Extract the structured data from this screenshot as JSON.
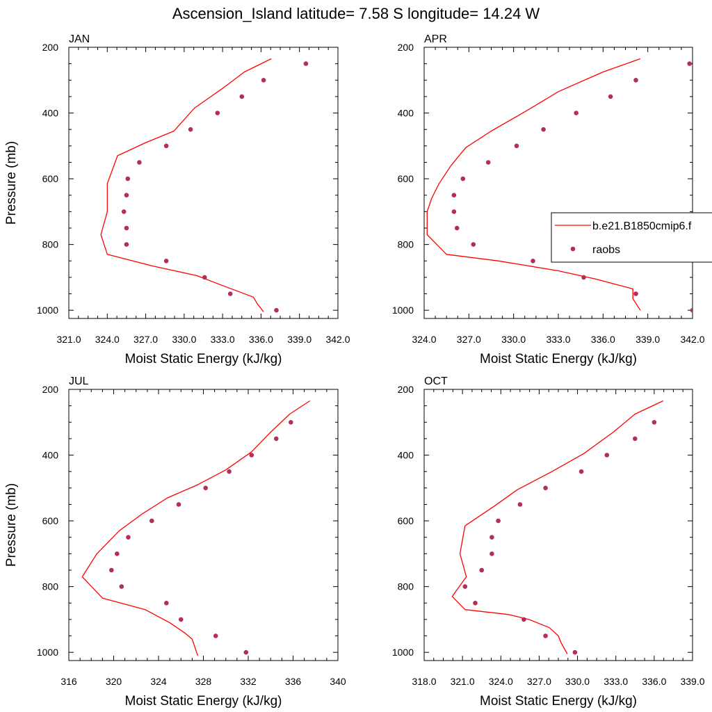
{
  "figure": {
    "title": "Ascension_Island  latitude= 7.58 S longitude= 14.24 W",
    "legend": {
      "model_label": "b.e21.B1850cmip6.f",
      "obs_label": "raobs"
    },
    "colors": {
      "model_line": "#ff0000",
      "obs_marker": "#b0305a",
      "frame": "#000000"
    }
  },
  "chart_data": [
    {
      "type": "line",
      "title": "JAN",
      "xlabel": "Moist Static Energy (kJ/kg)",
      "ylabel": "Pressure (mb)",
      "xlim": [
        321,
        342
      ],
      "xticks": [
        "321.0",
        "324.0",
        "327.0",
        "330.0",
        "333.0",
        "336.0",
        "339.0",
        "342.0"
      ],
      "ylim": [
        1025,
        200
      ],
      "yticks": [
        "200",
        "400",
        "600",
        "800",
        "1000"
      ],
      "y_direction": "inverted",
      "series": [
        {
          "name": "b.e21.B1850cmip6.f",
          "kind": "line",
          "points": [
            [
              336.8,
              235
            ],
            [
              334.7,
              275
            ],
            [
              333.0,
              325
            ],
            [
              330.8,
              385
            ],
            [
              329.2,
              455
            ],
            [
              327.0,
              490
            ],
            [
              324.8,
              530
            ],
            [
              324.0,
              615
            ],
            [
              324.0,
              700
            ],
            [
              323.5,
              770
            ],
            [
              324.0,
              830
            ],
            [
              327.5,
              865
            ],
            [
              331.0,
              895
            ],
            [
              333.0,
              925
            ],
            [
              335.4,
              960
            ],
            [
              335.7,
              980
            ],
            [
              336.2,
              1005
            ]
          ]
        },
        {
          "name": "raobs",
          "kind": "markers",
          "points": [
            [
              339.5,
              250
            ],
            [
              336.2,
              300
            ],
            [
              334.5,
              350
            ],
            [
              332.6,
              400
            ],
            [
              330.5,
              450
            ],
            [
              328.6,
              500
            ],
            [
              326.5,
              550
            ],
            [
              325.6,
              600
            ],
            [
              325.5,
              650
            ],
            [
              325.3,
              700
            ],
            [
              325.5,
              750
            ],
            [
              325.5,
              800
            ],
            [
              328.6,
              850
            ],
            [
              331.6,
              900
            ],
            [
              333.6,
              950
            ],
            [
              337.2,
              1000
            ]
          ]
        }
      ]
    },
    {
      "type": "line",
      "title": "APR",
      "xlabel": "Moist Static Energy (kJ/kg)",
      "ylabel": "",
      "xlim": [
        324,
        342
      ],
      "xticks": [
        "324.0",
        "327.0",
        "330.0",
        "333.0",
        "336.0",
        "339.0",
        "342.0"
      ],
      "ylim": [
        1025,
        200
      ],
      "yticks": [
        "200",
        "400",
        "600",
        "800",
        "1000"
      ],
      "y_direction": "inverted",
      "series": [
        {
          "name": "b.e21.B1850cmip6.f",
          "kind": "line",
          "points": [
            [
              338.5,
              235
            ],
            [
              336.0,
              275
            ],
            [
              333.0,
              335
            ],
            [
              330.8,
              395
            ],
            [
              328.5,
              455
            ],
            [
              326.8,
              505
            ],
            [
              325.8,
              560
            ],
            [
              325.0,
              615
            ],
            [
              324.5,
              660
            ],
            [
              324.2,
              700
            ],
            [
              324.2,
              770
            ],
            [
              325.5,
              830
            ],
            [
              329.0,
              850
            ],
            [
              333.0,
              880
            ],
            [
              335.5,
              905
            ],
            [
              338.0,
              935
            ],
            [
              338.0,
              965
            ],
            [
              338.5,
              1000
            ]
          ]
        },
        {
          "name": "raobs",
          "kind": "markers",
          "points": [
            [
              341.8,
              250
            ],
            [
              338.2,
              300
            ],
            [
              336.5,
              350
            ],
            [
              334.2,
              400
            ],
            [
              332.0,
              450
            ],
            [
              330.2,
              500
            ],
            [
              328.3,
              550
            ],
            [
              326.6,
              600
            ],
            [
              326.0,
              650
            ],
            [
              326.0,
              700
            ],
            [
              326.2,
              750
            ],
            [
              327.3,
              800
            ],
            [
              331.3,
              850
            ],
            [
              334.7,
              900
            ],
            [
              338.2,
              950
            ],
            [
              342.0,
              1000
            ]
          ]
        }
      ]
    },
    {
      "type": "line",
      "title": "JUL",
      "xlabel": "Moist Static Energy (kJ/kg)",
      "ylabel": "Pressure (mb)",
      "xlim": [
        316,
        340
      ],
      "xticks": [
        "316",
        "320",
        "324",
        "328",
        "332",
        "336",
        "340"
      ],
      "ylim": [
        1025,
        200
      ],
      "yticks": [
        "200",
        "400",
        "600",
        "800",
        "1000"
      ],
      "y_direction": "inverted",
      "series": [
        {
          "name": "b.e21.B1850cmip6.f",
          "kind": "line",
          "points": [
            [
              337.5,
              235
            ],
            [
              335.7,
              275
            ],
            [
              334.0,
              330
            ],
            [
              332.3,
              390
            ],
            [
              330.0,
              445
            ],
            [
              327.5,
              490
            ],
            [
              324.8,
              530
            ],
            [
              322.5,
              580
            ],
            [
              320.5,
              630
            ],
            [
              318.5,
              700
            ],
            [
              317.2,
              770
            ],
            [
              319.0,
              835
            ],
            [
              322.8,
              870
            ],
            [
              325.0,
              910
            ],
            [
              326.3,
              940
            ],
            [
              327.0,
              960
            ],
            [
              327.2,
              980
            ],
            [
              327.5,
              1010
            ]
          ]
        },
        {
          "name": "raobs",
          "kind": "markers",
          "points": [
            [
              335.8,
              300
            ],
            [
              334.5,
              350
            ],
            [
              332.3,
              400
            ],
            [
              330.3,
              450
            ],
            [
              328.2,
              500
            ],
            [
              325.8,
              550
            ],
            [
              323.4,
              600
            ],
            [
              321.3,
              650
            ],
            [
              320.3,
              700
            ],
            [
              319.8,
              750
            ],
            [
              320.7,
              800
            ],
            [
              324.7,
              850
            ],
            [
              326.0,
              900
            ],
            [
              329.1,
              950
            ],
            [
              331.8,
              1000
            ]
          ]
        }
      ]
    },
    {
      "type": "line",
      "title": "OCT",
      "xlabel": "Moist Static Energy (kJ/kg)",
      "ylabel": "",
      "xlim": [
        318,
        339
      ],
      "xticks": [
        "318.0",
        "321.0",
        "324.0",
        "327.0",
        "330.0",
        "333.0",
        "336.0",
        "339.0"
      ],
      "ylim": [
        1025,
        200
      ],
      "yticks": [
        "200",
        "400",
        "600",
        "800",
        "1000"
      ],
      "y_direction": "inverted",
      "series": [
        {
          "name": "b.e21.B1850cmip6.f",
          "kind": "line",
          "points": [
            [
              336.7,
              235
            ],
            [
              334.5,
              275
            ],
            [
              332.8,
              330
            ],
            [
              330.5,
              395
            ],
            [
              328.0,
              450
            ],
            [
              325.3,
              505
            ],
            [
              323.5,
              555
            ],
            [
              321.2,
              615
            ],
            [
              320.8,
              700
            ],
            [
              321.3,
              770
            ],
            [
              320.2,
              830
            ],
            [
              321.2,
              870
            ],
            [
              324.6,
              885
            ],
            [
              326.2,
              900
            ],
            [
              327.8,
              925
            ],
            [
              328.5,
              950
            ],
            [
              328.7,
              970
            ],
            [
              329.2,
              1005
            ]
          ]
        },
        {
          "name": "raobs",
          "kind": "markers",
          "points": [
            [
              336.0,
              300
            ],
            [
              334.5,
              350
            ],
            [
              332.3,
              400
            ],
            [
              330.3,
              450
            ],
            [
              327.5,
              500
            ],
            [
              325.5,
              550
            ],
            [
              323.8,
              600
            ],
            [
              323.3,
              650
            ],
            [
              323.3,
              700
            ],
            [
              322.5,
              750
            ],
            [
              321.2,
              800
            ],
            [
              322.0,
              850
            ],
            [
              325.8,
              900
            ],
            [
              327.5,
              950
            ],
            [
              329.8,
              1000
            ]
          ]
        }
      ]
    }
  ]
}
